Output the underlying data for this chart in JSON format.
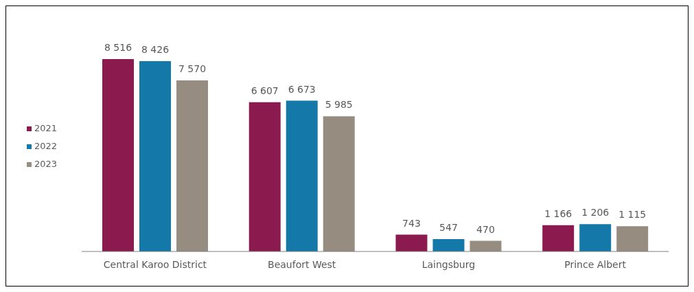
{
  "chart_data": {
    "type": "bar",
    "categories": [
      "Central Karoo District",
      "Beaufort West",
      "Laingsburg",
      "Prince Albert"
    ],
    "series": [
      {
        "name": "2021",
        "color": "#8b1a4f",
        "values": [
          8516,
          6607,
          743,
          1166
        ],
        "value_labels": [
          "8 516",
          "6 607",
          "743",
          "1 166"
        ]
      },
      {
        "name": "2022",
        "color": "#1479a8",
        "values": [
          8426,
          6673,
          547,
          1206
        ],
        "value_labels": [
          "8 426",
          "6 673",
          "547",
          "1 206"
        ]
      },
      {
        "name": "2023",
        "color": "#968c80",
        "values": [
          7570,
          5985,
          470,
          1115
        ],
        "value_labels": [
          "7 570",
          "5 985",
          "470",
          "1 115"
        ]
      }
    ],
    "legend": "left",
    "grid": false
  }
}
